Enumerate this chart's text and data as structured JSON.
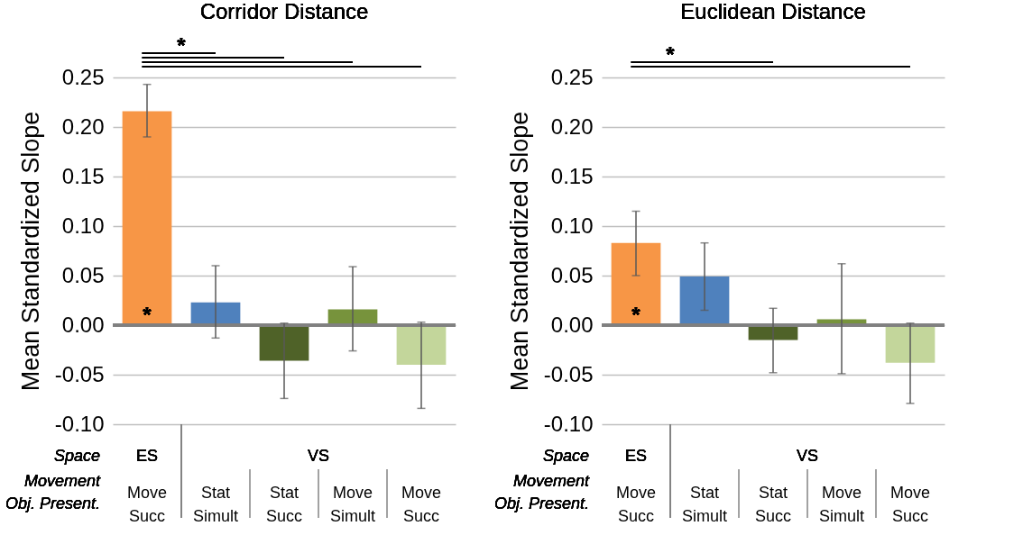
{
  "chart_data": [
    {
      "type": "bar",
      "title": "Corridor Distance",
      "ylabel": "Mean Standardized Slope",
      "categories": [
        "Move Succ",
        "Stat Simult",
        "Stat Succ",
        "Move Simult",
        "Move Succ"
      ],
      "values": [
        0.216,
        0.023,
        -0.036,
        0.016,
        -0.04
      ],
      "colors": [
        "#f79646",
        "#4f81bd",
        "#4f6228",
        "#77933c",
        "#c3d69b"
      ],
      "errors": [
        [
          0.19,
          0.243
        ],
        [
          -0.013,
          0.06
        ],
        [
          -0.074,
          0.002
        ],
        [
          -0.026,
          0.059
        ],
        [
          -0.084,
          0.003
        ]
      ],
      "ylim": [
        -0.1,
        0.25
      ],
      "yticks": [
        {
          "value": -0.1,
          "label": "-0.10"
        },
        {
          "value": -0.05,
          "label": "-0.05"
        },
        {
          "value": 0,
          "label": "0.00"
        },
        {
          "value": 0.05,
          "label": "0.05"
        },
        {
          "value": 0.1,
          "label": "0.10"
        },
        {
          "value": 0.15,
          "label": "0.15"
        },
        {
          "value": 0.2,
          "label": "0.20"
        },
        {
          "value": 0.25,
          "label": "0.25"
        }
      ],
      "grid": "y",
      "ref_lines": [
        {
          "axis": "y",
          "value": 0,
          "color": "#808080"
        }
      ],
      "annotations": [
        "*",
        "*",
        "Space",
        "Movement",
        "Obj. Present.",
        "ES",
        "VS"
      ]
    },
    {
      "type": "bar",
      "title": "Euclidean Distance",
      "ylabel": "Mean Standardized Slope",
      "categories": [
        "Move Succ",
        "Stat Simult",
        "Stat Succ",
        "Move Simult",
        "Move Succ"
      ],
      "values": [
        0.083,
        0.049,
        -0.015,
        0.006,
        -0.038
      ],
      "colors": [
        "#f79646",
        "#4f81bd",
        "#4f6228",
        "#77933c",
        "#c3d69b"
      ],
      "errors": [
        [
          0.05,
          0.115
        ],
        [
          0.015,
          0.083
        ],
        [
          -0.048,
          0.017
        ],
        [
          -0.049,
          0.062
        ],
        [
          -0.079,
          0.002
        ]
      ],
      "ylim": [
        -0.1,
        0.25
      ],
      "yticks": [
        {
          "value": -0.1,
          "label": "-0.10"
        },
        {
          "value": -0.05,
          "label": "-0.05"
        },
        {
          "value": 0,
          "label": "0.00"
        },
        {
          "value": 0.05,
          "label": "0.05"
        },
        {
          "value": 0.1,
          "label": "0.10"
        },
        {
          "value": 0.15,
          "label": "0.15"
        },
        {
          "value": 0.2,
          "label": "0.20"
        },
        {
          "value": 0.25,
          "label": "0.25"
        }
      ],
      "grid": "y",
      "ref_lines": [
        {
          "axis": "y",
          "value": 0,
          "color": "#808080"
        }
      ],
      "annotations": [
        "*",
        "*",
        "Space",
        "Movement",
        "Obj. Present.",
        "ES",
        "VS"
      ]
    }
  ]
}
